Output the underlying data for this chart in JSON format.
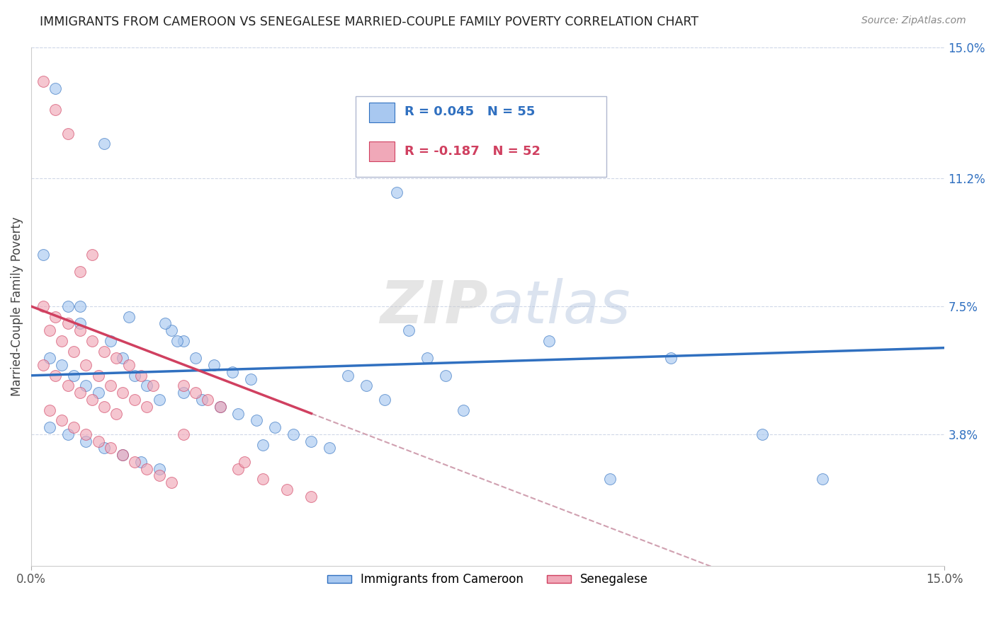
{
  "title": "IMMIGRANTS FROM CAMEROON VS SENEGALESE MARRIED-COUPLE FAMILY POVERTY CORRELATION CHART",
  "source": "Source: ZipAtlas.com",
  "ylabel": "Married-Couple Family Poverty",
  "xlim": [
    0.0,
    0.15
  ],
  "ylim": [
    0.0,
    0.15
  ],
  "ytick_labels_right": [
    "15.0%",
    "11.2%",
    "7.5%",
    "3.8%"
  ],
  "ytick_values_right": [
    0.15,
    0.112,
    0.075,
    0.038
  ],
  "r_blue": 0.045,
  "n_blue": 55,
  "r_pink": -0.187,
  "n_pink": 52,
  "blue_color": "#a8c8f0",
  "pink_color": "#f0a8b8",
  "blue_line_color": "#3070c0",
  "pink_line_color": "#d04060",
  "dashed_line_color": "#d0a0b0",
  "watermark_color": "#d8dde8",
  "background_color": "#ffffff",
  "grid_color": "#d0d8e8",
  "title_color": "#222222",
  "source_color": "#888888",
  "axis_label_color": "#444444",
  "tick_color_right": "#3070c0",
  "blue_points_x": [
    0.004,
    0.012,
    0.002,
    0.006,
    0.008,
    0.003,
    0.005,
    0.007,
    0.009,
    0.011,
    0.013,
    0.015,
    0.017,
    0.019,
    0.021,
    0.023,
    0.025,
    0.003,
    0.006,
    0.009,
    0.012,
    0.015,
    0.018,
    0.021,
    0.024,
    0.027,
    0.03,
    0.033,
    0.036,
    0.025,
    0.028,
    0.031,
    0.034,
    0.037,
    0.04,
    0.043,
    0.046,
    0.049,
    0.052,
    0.055,
    0.058,
    0.062,
    0.065,
    0.068,
    0.071,
    0.085,
    0.095,
    0.105,
    0.12,
    0.13,
    0.008,
    0.016,
    0.022,
    0.038,
    0.06
  ],
  "blue_points_y": [
    0.138,
    0.122,
    0.09,
    0.075,
    0.07,
    0.06,
    0.058,
    0.055,
    0.052,
    0.05,
    0.065,
    0.06,
    0.055,
    0.052,
    0.048,
    0.068,
    0.065,
    0.04,
    0.038,
    0.036,
    0.034,
    0.032,
    0.03,
    0.028,
    0.065,
    0.06,
    0.058,
    0.056,
    0.054,
    0.05,
    0.048,
    0.046,
    0.044,
    0.042,
    0.04,
    0.038,
    0.036,
    0.034,
    0.055,
    0.052,
    0.048,
    0.068,
    0.06,
    0.055,
    0.045,
    0.065,
    0.025,
    0.06,
    0.038,
    0.025,
    0.075,
    0.072,
    0.07,
    0.035,
    0.108
  ],
  "pink_points_x": [
    0.002,
    0.004,
    0.006,
    0.008,
    0.01,
    0.003,
    0.005,
    0.007,
    0.009,
    0.011,
    0.013,
    0.015,
    0.017,
    0.019,
    0.002,
    0.004,
    0.006,
    0.008,
    0.01,
    0.012,
    0.014,
    0.016,
    0.018,
    0.02,
    0.003,
    0.005,
    0.007,
    0.009,
    0.011,
    0.013,
    0.015,
    0.017,
    0.019,
    0.021,
    0.023,
    0.025,
    0.027,
    0.029,
    0.031,
    0.034,
    0.038,
    0.042,
    0.046,
    0.002,
    0.004,
    0.006,
    0.008,
    0.01,
    0.012,
    0.014,
    0.025,
    0.035
  ],
  "pink_points_y": [
    0.14,
    0.132,
    0.125,
    0.085,
    0.09,
    0.068,
    0.065,
    0.062,
    0.058,
    0.055,
    0.052,
    0.05,
    0.048,
    0.046,
    0.075,
    0.072,
    0.07,
    0.068,
    0.065,
    0.062,
    0.06,
    0.058,
    0.055,
    0.052,
    0.045,
    0.042,
    0.04,
    0.038,
    0.036,
    0.034,
    0.032,
    0.03,
    0.028,
    0.026,
    0.024,
    0.052,
    0.05,
    0.048,
    0.046,
    0.028,
    0.025,
    0.022,
    0.02,
    0.058,
    0.055,
    0.052,
    0.05,
    0.048,
    0.046,
    0.044,
    0.038,
    0.03
  ],
  "pink_line_end_x": 0.046,
  "blue_line_start_y": 0.055,
  "blue_line_end_y": 0.063
}
